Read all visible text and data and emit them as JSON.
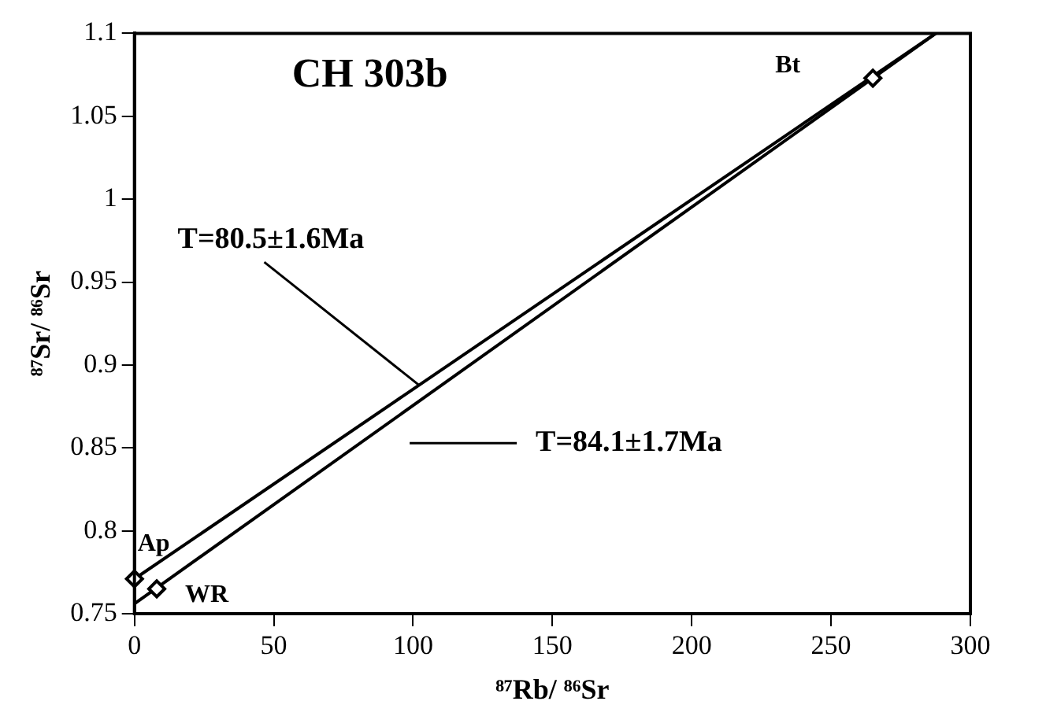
{
  "chart_data": {
    "type": "scatter",
    "title": "CH 303b",
    "xlabel": "⁸⁷Rb/ ⁸⁶Sr",
    "ylabel": "⁸⁷Sr/ ⁸⁶Sr",
    "xlim": [
      0,
      300
    ],
    "xticks": [
      0,
      50,
      100,
      150,
      200,
      250,
      300
    ],
    "ylim": [
      0.75,
      1.1
    ],
    "yticks": [
      0.75,
      0.8,
      0.85,
      0.9,
      0.95,
      1,
      1.05,
      1.1
    ],
    "grid": false,
    "legend": false,
    "series": [
      {
        "type": "scatter",
        "color": "#000000",
        "marker": "diamond",
        "x": [
          0,
          8,
          265
        ],
        "values": [
          0.771,
          0.765,
          1.073
        ]
      },
      {
        "type": "line",
        "color": "#000000",
        "marker": "none",
        "line_style": "solid",
        "x": [
          0,
          287.6
        ],
        "values": [
          0.771,
          1.1
        ]
      },
      {
        "type": "line",
        "color": "#000000",
        "marker": "none",
        "line_style": "solid",
        "x": [
          0,
          287.6
        ],
        "values": [
          0.756,
          1.1
        ]
      }
    ],
    "annotations": [
      {
        "text": "Ap",
        "x": 0,
        "y": 0.771
      },
      {
        "text": "WR",
        "x": 8,
        "y": 0.765
      },
      {
        "text": "Bt",
        "x": 265,
        "y": 1.073
      },
      {
        "text": "T=80.5±1.6Ma",
        "x": 102,
        "y": 0.888
      },
      "T=84.1±1.7Ma"
    ]
  }
}
